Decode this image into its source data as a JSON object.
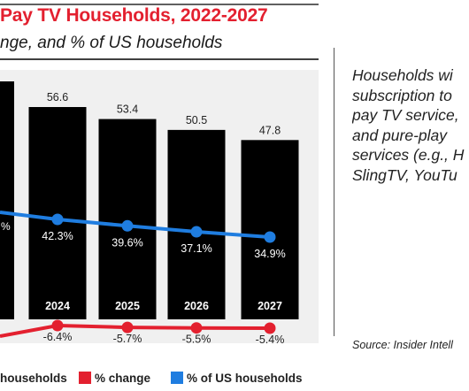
{
  "chart_data": {
    "type": "bar",
    "title": "Pay TV Households, 2022-2027",
    "subtitle": "nge, and % of US households",
    "categories": [
      "2024",
      "2025",
      "2026",
      "2027"
    ],
    "series": [
      {
        "name": "households",
        "type": "bar",
        "values": [
          56.6,
          53.4,
          50.5,
          47.8
        ],
        "color": "#000000"
      },
      {
        "name": "% change",
        "type": "line",
        "values": [
          -6.4,
          -5.7,
          -5.5,
          -5.4
        ],
        "labels": [
          "-6.4%",
          "-5.7%",
          "-5.5%",
          "-5.4%"
        ],
        "color": "#e3202f"
      },
      {
        "name": "% of US households",
        "type": "line",
        "values": [
          42.3,
          39.6,
          37.1,
          34.9
        ],
        "labels": [
          "42.3%",
          "39.6%",
          "37.1%",
          "34.9%"
        ],
        "color": "#1f7de0"
      }
    ],
    "partial_left_labels": {
      "pct_us": "%"
    },
    "legend": {
      "position": "bottom",
      "entries": [
        "households",
        "% change",
        "% of US households"
      ]
    },
    "grid": false
  },
  "annotation": {
    "text": "Households wi\nsubscription to\npay TV service,\nand pure-play\nservices (e.g., H\nSlingTV, YouTu"
  },
  "source": "Source: Insider Intell",
  "colors": {
    "accent": "#e3202f",
    "blue": "#1f7de0",
    "bar": "#000000"
  }
}
